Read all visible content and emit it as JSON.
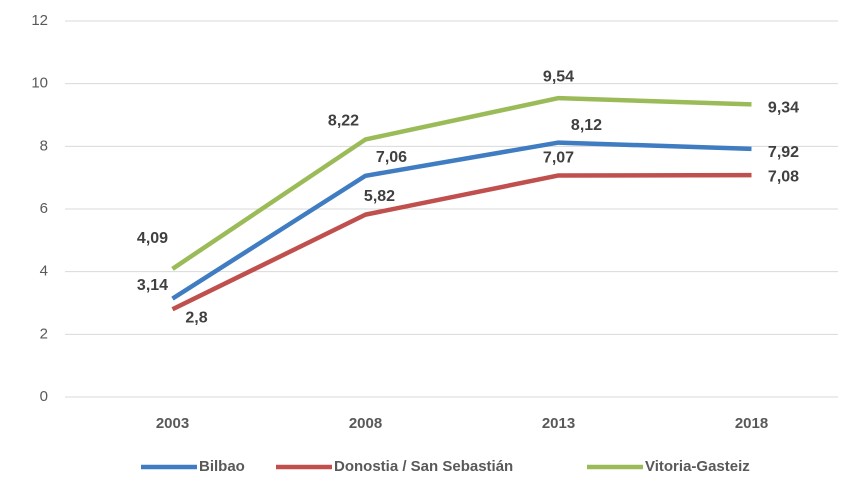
{
  "chart_data": {
    "type": "line",
    "categories": [
      "2003",
      "2008",
      "2013",
      "2018"
    ],
    "series": [
      {
        "name": "Bilbao",
        "color": "#3f7cc1",
        "values": [
          3.14,
          7.06,
          8.12,
          7.92
        ],
        "value_labels": [
          "3,14",
          "7,06",
          "8,12",
          "7,92"
        ]
      },
      {
        "name": "Donostia / San Sebastián",
        "color": "#c0504d",
        "values": [
          2.8,
          5.82,
          7.07,
          7.08
        ],
        "value_labels": [
          "2,8",
          "5,82",
          "7,07",
          "7,08"
        ]
      },
      {
        "name": "Vitoria-Gasteiz",
        "color": "#9bbb59",
        "values": [
          4.09,
          8.22,
          9.54,
          9.34
        ],
        "value_labels": [
          "4,09",
          "8,22",
          "9,54",
          "9,34"
        ]
      }
    ],
    "ylim": [
      0,
      12
    ],
    "yticks": [
      0,
      2,
      4,
      6,
      8,
      10,
      12
    ],
    "grid": true,
    "legend": "bottom"
  }
}
